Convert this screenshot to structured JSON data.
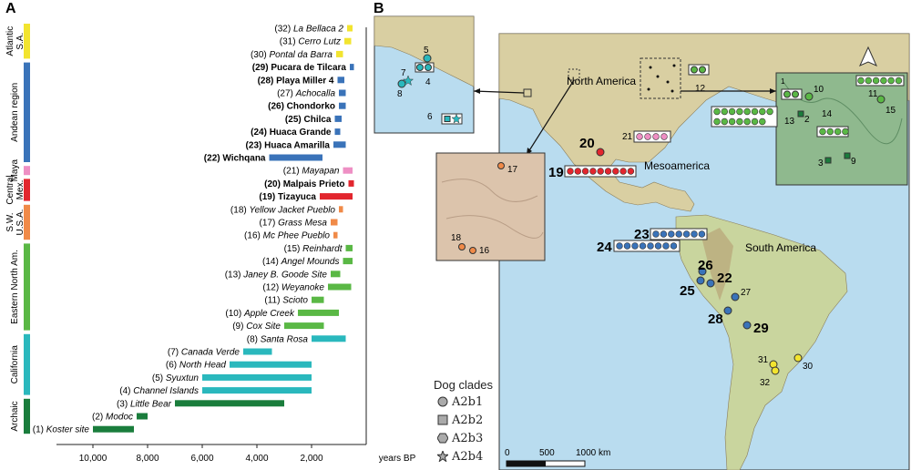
{
  "panel_a_label": "A",
  "panel_b_label": "B",
  "axis_unit": "years BP",
  "ticks": [
    "10,000",
    "8,000",
    "6,000",
    "4,000",
    "2,000"
  ],
  "regions": [
    {
      "name": "Atlantic S.A.",
      "color": "#f2e42f"
    },
    {
      "name": "Andean region",
      "color": "#3a73b9"
    },
    {
      "name": "Maya",
      "color": "#ee8fc4"
    },
    {
      "name": "Central Mex.",
      "color": "#e2262e"
    },
    {
      "name": "S.W. U.S.A.",
      "color": "#f08a48"
    },
    {
      "name": "Eastern North Am.",
      "color": "#5ab845"
    },
    {
      "name": "California",
      "color": "#2ab8bd"
    },
    {
      "name": "Archaic",
      "color": "#1a7d3c"
    }
  ],
  "chart_data": {
    "type": "bar",
    "title": "",
    "xlabel": "years BP",
    "xlim": [
      10500,
      0
    ],
    "sites": [
      {
        "num": "(32)",
        "name": "La Bellaca 2",
        "region": "Atlantic S.A.",
        "start": 700,
        "end": 500,
        "bold": false
      },
      {
        "num": "(31)",
        "name": "Cerro Lutz",
        "region": "Atlantic S.A.",
        "start": 800,
        "end": 550,
        "bold": false
      },
      {
        "num": "(30)",
        "name": "Pontal da Barra",
        "region": "Atlantic S.A.",
        "start": 1100,
        "end": 850,
        "bold": false
      },
      {
        "num": "(29)",
        "name": "Pucara de Tilcara",
        "region": "Andean region",
        "start": 600,
        "end": 450,
        "bold": true
      },
      {
        "num": "(28)",
        "name": "Playa Miller 4",
        "region": "Andean region",
        "start": 1050,
        "end": 800,
        "bold": true
      },
      {
        "num": "(27)",
        "name": "Achocalla",
        "region": "Andean region",
        "start": 1000,
        "end": 750,
        "bold": false
      },
      {
        "num": "(26)",
        "name": "Chondorko",
        "region": "Andean region",
        "start": 1000,
        "end": 750,
        "bold": true
      },
      {
        "num": "(25)",
        "name": "Chilca",
        "region": "Andean region",
        "start": 1150,
        "end": 900,
        "bold": true
      },
      {
        "num": "(24)",
        "name": "Huaca Grande",
        "region": "Andean region",
        "start": 1150,
        "end": 950,
        "bold": true
      },
      {
        "num": "(23)",
        "name": "Huaca Amarilla",
        "region": "Andean region",
        "start": 1200,
        "end": 750,
        "bold": true
      },
      {
        "num": "(22)",
        "name": "Wichqana",
        "region": "Andean region",
        "start": 3550,
        "end": 1600,
        "bold": true
      },
      {
        "num": "(21)",
        "name": "Mayapan",
        "region": "Maya",
        "start": 850,
        "end": 500,
        "bold": false
      },
      {
        "num": "(20)",
        "name": "Malpais Prieto",
        "region": "Central Mex.",
        "start": 650,
        "end": 450,
        "bold": true
      },
      {
        "num": "(19)",
        "name": "Tizayuca",
        "region": "Central Mex.",
        "start": 1700,
        "end": 500,
        "bold": true
      },
      {
        "num": "(18)",
        "name": "Yellow Jacket Pueblo",
        "region": "S.W. U.S.A.",
        "start": 1000,
        "end": 850,
        "bold": false
      },
      {
        "num": "(17)",
        "name": "Grass Mesa",
        "region": "S.W. U.S.A.",
        "start": 1300,
        "end": 1050,
        "bold": false
      },
      {
        "num": "(16)",
        "name": "Mc Phee Pueblo",
        "region": "S.W. U.S.A.",
        "start": 1200,
        "end": 1050,
        "bold": false
      },
      {
        "num": "(15)",
        "name": "Reinhardt",
        "region": "Eastern North Am.",
        "start": 750,
        "end": 500,
        "bold": false
      },
      {
        "num": "(14)",
        "name": "Angel Mounds",
        "region": "Eastern North Am.",
        "start": 850,
        "end": 500,
        "bold": false
      },
      {
        "num": "(13)",
        "name": "Janey B. Goode Site",
        "region": "Eastern North Am.",
        "start": 1300,
        "end": 950,
        "bold": false
      },
      {
        "num": "(12)",
        "name": "Weyanoke",
        "region": "Eastern North Am.",
        "start": 1400,
        "end": 550,
        "bold": false
      },
      {
        "num": "(11)",
        "name": "Scioto",
        "region": "Eastern North Am.",
        "start": 2000,
        "end": 1550,
        "bold": false
      },
      {
        "num": "(10)",
        "name": "Apple Creek",
        "region": "Eastern North Am.",
        "start": 2500,
        "end": 1000,
        "bold": false
      },
      {
        "num": "(9)",
        "name": "Cox Site",
        "region": "Eastern North Am.",
        "start": 3000,
        "end": 1550,
        "bold": false
      },
      {
        "num": "(8)",
        "name": "Santa Rosa",
        "region": "California",
        "start": 2000,
        "end": 750,
        "bold": false
      },
      {
        "num": "(7)",
        "name": "Canada Verde",
        "region": "California",
        "start": 4500,
        "end": 3450,
        "bold": false
      },
      {
        "num": "(6)",
        "name": "North Head",
        "region": "California",
        "start": 5000,
        "end": 2000,
        "bold": false
      },
      {
        "num": "(5)",
        "name": "Syuxtun",
        "region": "California",
        "start": 6000,
        "end": 2000,
        "bold": false
      },
      {
        "num": "(4)",
        "name": "Channel Islands",
        "region": "California",
        "start": 6000,
        "end": 2000,
        "bold": false
      },
      {
        "num": "(3)",
        "name": "Little Bear",
        "region": "Archaic",
        "start": 7000,
        "end": 3000,
        "bold": false
      },
      {
        "num": "(2)",
        "name": "Modoc",
        "region": "Archaic",
        "start": 8400,
        "end": 8000,
        "bold": false
      },
      {
        "num": "(1)",
        "name": "Koster site",
        "region": "Archaic",
        "start": 10000,
        "end": 8500,
        "bold": false
      }
    ]
  },
  "map": {
    "label_north_america": "North America",
    "label_mesoamerica": "Mesoamerica",
    "label_south_america": "South America",
    "scale": {
      "zero": "0",
      "mid": "500",
      "far": "1000 km"
    },
    "sites": [
      {
        "num": "19",
        "x": 0,
        "bold": true
      },
      {
        "num": "20",
        "bold": true
      },
      {
        "num": "21",
        "bold": false
      },
      {
        "num": "22",
        "bold": true
      },
      {
        "num": "23",
        "bold": true
      },
      {
        "num": "24",
        "bold": true
      },
      {
        "num": "25",
        "bold": true
      },
      {
        "num": "26",
        "bold": true
      },
      {
        "num": "27",
        "bold": false
      },
      {
        "num": "28",
        "bold": true
      },
      {
        "num": "29",
        "bold": true
      },
      {
        "num": "30",
        "bold": false
      },
      {
        "num": "31",
        "bold": false
      },
      {
        "num": "32",
        "bold": false
      },
      {
        "num": "12",
        "bold": false
      }
    ],
    "inset_ca_nums": [
      "5",
      "7",
      "8",
      "4",
      "6"
    ],
    "inset_sw_nums": [
      "17",
      "18",
      "16"
    ],
    "inset_ena_nums": [
      "10",
      "11",
      "15",
      "2",
      "13",
      "14",
      "3",
      "9",
      "1"
    ]
  },
  "legend": {
    "title": "Dog clades",
    "items": [
      {
        "shape": "circle",
        "label": "A2b1"
      },
      {
        "shape": "square",
        "label": "A2b2"
      },
      {
        "shape": "hexagon",
        "label": "A2b3"
      },
      {
        "shape": "star",
        "label": "A2b4"
      }
    ]
  }
}
